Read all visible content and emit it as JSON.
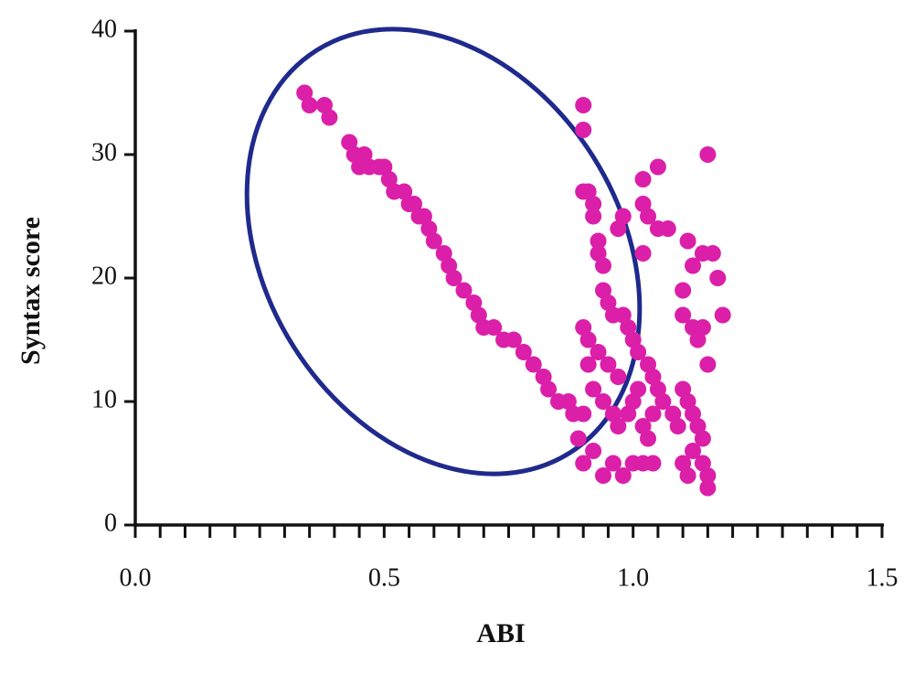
{
  "chart_data": {
    "type": "scatter",
    "xlabel": "ABI",
    "ylabel": "Syntax score",
    "xlim": [
      0,
      1.5
    ],
    "ylim": [
      0,
      40
    ],
    "xticks": [
      {
        "value": 0,
        "label": "0.0"
      },
      0.5,
      {
        "value": 1,
        "label": "1.0"
      },
      1.5
    ],
    "xminorticks": [
      0.05,
      0.1,
      0.15,
      0.2,
      0.25,
      0.3,
      0.35,
      0.4,
      0.45,
      0.55,
      0.6,
      0.65,
      0.7,
      0.75,
      0.8,
      0.85,
      0.9,
      0.95,
      1.05,
      1.1,
      1.15,
      1.2,
      1.25,
      1.3,
      1.35,
      1.4,
      1.45
    ],
    "yticks": [
      0,
      10,
      20,
      30,
      40
    ],
    "grid": false,
    "series": [
      {
        "color": "#db1fa9",
        "x": [
          0.34,
          0.35,
          0.38,
          0.39,
          0.43,
          0.44,
          0.45,
          0.46,
          0.47,
          0.49,
          0.5,
          0.51,
          0.52,
          0.54,
          0.55,
          0.56,
          0.57,
          0.58,
          0.59,
          0.6,
          0.62,
          0.63,
          0.64,
          0.66,
          0.68,
          0.69,
          0.7,
          0.72,
          0.74,
          0.76,
          0.78,
          0.8,
          0.82,
          0.83,
          0.85,
          0.87,
          0.88,
          0.9,
          0.9,
          0.9,
          0.9,
          0.91,
          0.92,
          0.92,
          0.93,
          0.93,
          0.94,
          0.94,
          0.95,
          0.96,
          0.97,
          0.98,
          1.02,
          1.05,
          1.02,
          1.03,
          1.05,
          1.07,
          1.02,
          1.15,
          1.11,
          1.14,
          1.16,
          1.12,
          1.17,
          1.1,
          1.18,
          1.1,
          1.12,
          1.13,
          1.14,
          0.9,
          0.91,
          0.93,
          0.95,
          0.97,
          0.98,
          0.99,
          1.0,
          1.01,
          1.03,
          1.04,
          1.05,
          1.06,
          1.08,
          1.09,
          1.1,
          1.11,
          1.12,
          1.13,
          1.14,
          1.15,
          0.91,
          0.92,
          0.94,
          0.96,
          0.97,
          0.99,
          1.0,
          1.01,
          1.02,
          1.03,
          1.04,
          0.89,
          0.9,
          0.92,
          0.94,
          0.96,
          0.98,
          1.0,
          1.02,
          1.04,
          1.1,
          1.11,
          1.12,
          1.14,
          1.15,
          1.15
        ],
        "y": [
          35,
          34,
          34,
          33,
          31,
          30,
          29,
          30,
          29,
          29,
          29,
          28,
          27,
          27,
          26,
          26,
          25,
          25,
          24,
          23,
          22,
          21,
          20,
          19,
          18,
          17,
          16,
          16,
          15,
          15,
          14,
          13,
          12,
          11,
          10,
          10,
          9,
          9,
          34,
          32,
          27,
          27,
          26,
          25,
          23,
          22,
          21,
          19,
          18,
          17,
          24,
          25,
          28,
          29,
          26,
          25,
          24,
          24,
          22,
          30,
          23,
          22,
          22,
          21,
          20,
          19,
          17,
          17,
          16,
          15,
          16,
          16,
          15,
          14,
          13,
          12,
          17,
          16,
          15,
          14,
          13,
          12,
          11,
          10,
          9,
          8,
          11,
          10,
          9,
          8,
          7,
          13,
          13,
          11,
          10,
          9,
          8,
          9,
          10,
          11,
          8,
          7,
          9,
          7,
          5,
          6,
          4,
          5,
          4,
          5,
          5,
          5,
          5,
          4,
          6,
          5,
          4,
          3
        ]
      }
    ]
  }
}
